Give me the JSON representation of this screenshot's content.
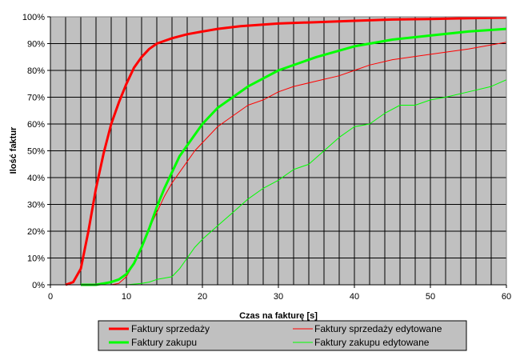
{
  "chart_data": {
    "type": "line",
    "title": "",
    "xlabel": "Czas na fakturę [s]",
    "ylabel": "Ilość faktur",
    "xlim": [
      0,
      60
    ],
    "ylim": [
      0,
      1
    ],
    "x_ticks": [
      0,
      10,
      20,
      30,
      40,
      50,
      60
    ],
    "x_tick_labels": [
      "0",
      "10",
      "20",
      "30",
      "40",
      "50",
      "60"
    ],
    "y_ticks": [
      0,
      0.1,
      0.2,
      0.3,
      0.4,
      0.5,
      0.6,
      0.7,
      0.8,
      0.9,
      1.0
    ],
    "y_tick_labels": [
      "0%",
      "10%",
      "20%",
      "30%",
      "40%",
      "50%",
      "60%",
      "70%",
      "80%",
      "90%",
      "100%"
    ],
    "x_gridline_step": 2,
    "grid": true,
    "plot_background": "#c0c0c0",
    "legend_position": "bottom",
    "series": [
      {
        "name": "Faktury sprzedaży",
        "color": "#ff0000",
        "line": "thick",
        "x": [
          2,
          3,
          4,
          5,
          6,
          7,
          8,
          9,
          10,
          11,
          12,
          13,
          14,
          15,
          16,
          18,
          20,
          22,
          25,
          30,
          35,
          40,
          45,
          50,
          55,
          60
        ],
        "y": [
          0.0,
          0.01,
          0.06,
          0.2,
          0.36,
          0.49,
          0.6,
          0.68,
          0.75,
          0.81,
          0.85,
          0.88,
          0.9,
          0.91,
          0.92,
          0.935,
          0.945,
          0.955,
          0.965,
          0.975,
          0.98,
          0.985,
          0.99,
          0.992,
          0.995,
          0.997
        ]
      },
      {
        "name": "Faktury zakupu",
        "color": "#00ff00",
        "line": "thick",
        "x": [
          4,
          6,
          7,
          8,
          9,
          10,
          11,
          12,
          13,
          14,
          15,
          16,
          17,
          18,
          19,
          20,
          22,
          24,
          26,
          28,
          30,
          35,
          40,
          45,
          50,
          55,
          60
        ],
        "y": [
          0.0,
          0.0,
          0.005,
          0.01,
          0.02,
          0.04,
          0.08,
          0.14,
          0.21,
          0.29,
          0.36,
          0.42,
          0.48,
          0.52,
          0.56,
          0.6,
          0.66,
          0.7,
          0.74,
          0.77,
          0.8,
          0.85,
          0.89,
          0.915,
          0.93,
          0.945,
          0.955
        ]
      },
      {
        "name": "Faktury sprzedaży edytowane",
        "color": "#ff0000",
        "line": "thin",
        "x": [
          8,
          9,
          10,
          11,
          12,
          13,
          14,
          15,
          16,
          17,
          18,
          19,
          20,
          22,
          24,
          26,
          28,
          30,
          32,
          35,
          38,
          40,
          42,
          45,
          50,
          55,
          60
        ],
        "y": [
          0.0,
          0.005,
          0.03,
          0.08,
          0.14,
          0.21,
          0.27,
          0.33,
          0.38,
          0.42,
          0.46,
          0.5,
          0.53,
          0.59,
          0.63,
          0.67,
          0.69,
          0.72,
          0.74,
          0.76,
          0.78,
          0.8,
          0.82,
          0.84,
          0.86,
          0.88,
          0.905
        ]
      },
      {
        "name": "Faktury zakupu edytowane",
        "color": "#00ff00",
        "line": "thin",
        "x": [
          9,
          10,
          12,
          13,
          14,
          15,
          16,
          17,
          18,
          19,
          20,
          22,
          24,
          26,
          28,
          30,
          32,
          34,
          36,
          38,
          40,
          42,
          44,
          46,
          48,
          50,
          52,
          55,
          58,
          60
        ],
        "y": [
          0.0,
          0.0,
          0.005,
          0.01,
          0.02,
          0.025,
          0.03,
          0.06,
          0.1,
          0.14,
          0.17,
          0.22,
          0.27,
          0.32,
          0.36,
          0.39,
          0.43,
          0.45,
          0.5,
          0.55,
          0.59,
          0.6,
          0.64,
          0.67,
          0.67,
          0.69,
          0.7,
          0.72,
          0.74,
          0.765
        ]
      }
    ]
  }
}
